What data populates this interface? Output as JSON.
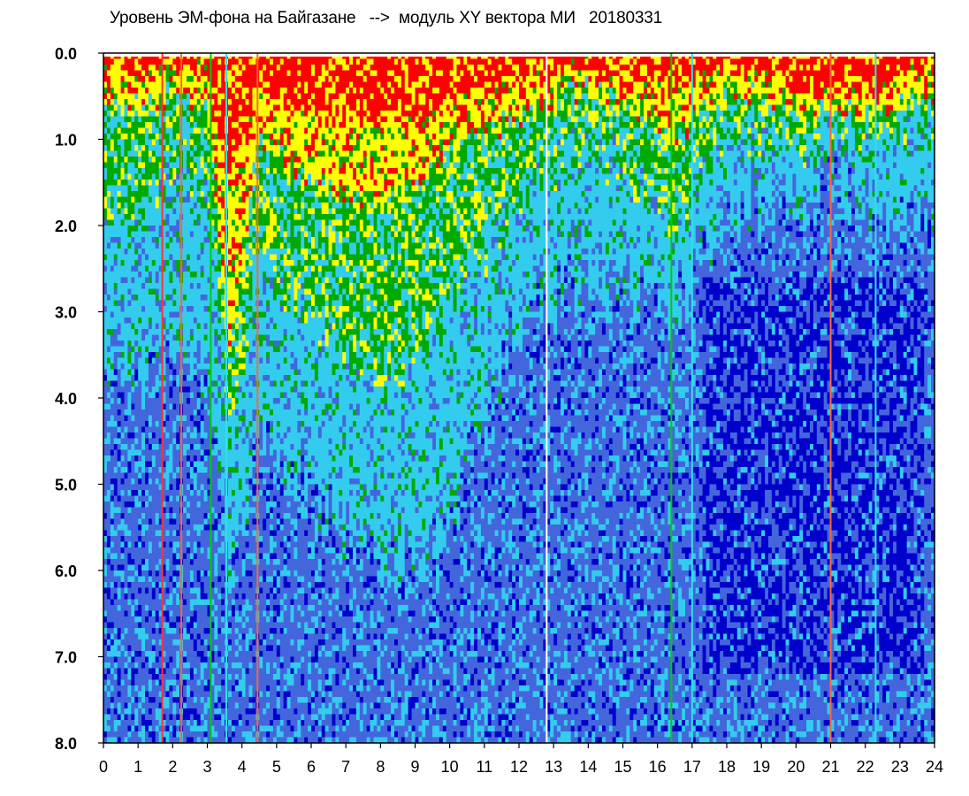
{
  "chart_data": {
    "type": "heatmap",
    "title": "Уровень ЭМ-фона на Байгазане   -->  модуль XY вектора МИ   20180331",
    "x_ticks": [
      "0",
      "1",
      "2",
      "3",
      "4",
      "5",
      "6",
      "7",
      "8",
      "9",
      "10",
      "11",
      "12",
      "13",
      "14",
      "15",
      "16",
      "17",
      "18",
      "19",
      "20",
      "21",
      "22",
      "23",
      "24"
    ],
    "y_ticks": [
      "0.0",
      "1.0",
      "2.0",
      "3.0",
      "4.0",
      "5.0",
      "6.0",
      "7.0",
      "8.0"
    ],
    "xlim": [
      0,
      24
    ],
    "ylim": [
      0,
      8
    ],
    "y_inverted": true,
    "grid": false,
    "legend": "none",
    "colormap": [
      "#0000cc",
      "#4466dd",
      "#33ccee",
      "#00aa00",
      "#ffff00",
      "#ff0000"
    ],
    "bands": [
      {
        "hour": 0.0,
        "top_red": 0.1,
        "top_yellow": 0.5,
        "top_green": 1.8,
        "mid": 3.5
      },
      {
        "hour": 1.0,
        "top_red": 0.2,
        "top_yellow": 0.6,
        "top_green": 2.0,
        "mid": 3.8
      },
      {
        "hour": 2.0,
        "top_red": 0.2,
        "top_yellow": 0.5,
        "top_green": 1.4,
        "mid": 3.5
      },
      {
        "hour": 3.0,
        "top_red": 0.2,
        "top_yellow": 0.6,
        "top_green": 1.6,
        "mid": 3.8
      },
      {
        "hour": 3.6,
        "top_red": 1.5,
        "top_yellow": 3.5,
        "top_green": 4.6,
        "mid": 6.0
      },
      {
        "hour": 4.5,
        "top_red": 0.5,
        "top_yellow": 1.0,
        "top_green": 2.4,
        "mid": 4.5
      },
      {
        "hour": 6.0,
        "top_red": 0.7,
        "top_yellow": 1.5,
        "top_green": 3.0,
        "mid": 5.0
      },
      {
        "hour": 8.0,
        "top_red": 0.9,
        "top_yellow": 1.8,
        "top_green": 4.0,
        "mid": 6.0
      },
      {
        "hour": 10.0,
        "top_red": 0.6,
        "top_yellow": 1.2,
        "top_green": 3.0,
        "mid": 5.5
      },
      {
        "hour": 12.0,
        "top_red": 0.3,
        "top_yellow": 0.7,
        "top_green": 1.6,
        "mid": 3.0
      },
      {
        "hour": 14.0,
        "top_red": 0.1,
        "top_yellow": 0.4,
        "top_green": 1.0,
        "mid": 2.6
      },
      {
        "hour": 16.5,
        "top_red": 0.4,
        "top_yellow": 1.0,
        "top_green": 2.0,
        "mid": 3.0
      },
      {
        "hour": 18.0,
        "top_red": 0.1,
        "top_yellow": 0.4,
        "top_green": 0.9,
        "mid": 1.8
      },
      {
        "hour": 21.0,
        "top_red": 0.5,
        "top_yellow": 0.7,
        "top_green": 1.0,
        "mid": 1.6
      },
      {
        "hour": 24.0,
        "top_red": 0.2,
        "top_yellow": 0.6,
        "top_green": 1.0,
        "mid": 2.2
      }
    ],
    "vertical_lines": [
      {
        "hour": 1.7,
        "color": "#ff3333"
      },
      {
        "hour": 2.25,
        "color": "#ff6633"
      },
      {
        "hour": 3.1,
        "color": "#00cc00"
      },
      {
        "hour": 3.55,
        "color": "#33ddee"
      },
      {
        "hour": 4.45,
        "color": "#ff6633"
      },
      {
        "hour": 12.8,
        "color": "#ffffff"
      },
      {
        "hour": 16.4,
        "color": "#00cc00"
      },
      {
        "hour": 17.0,
        "color": "#33ddee"
      },
      {
        "hour": 21.0,
        "color": "#ff6633"
      },
      {
        "hour": 22.3,
        "color": "#33ddee"
      }
    ]
  }
}
